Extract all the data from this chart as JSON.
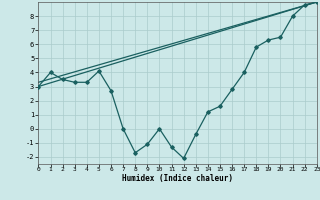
{
  "xlabel": "Humidex (Indice chaleur)",
  "background_color": "#cce8e8",
  "grid_color": "#aacccc",
  "line_color": "#1a6060",
  "x_min": 0,
  "x_max": 23,
  "y_min": -2.5,
  "y_max": 9.0,
  "yticks": [
    -2,
    -1,
    0,
    1,
    2,
    3,
    4,
    5,
    6,
    7,
    8
  ],
  "xticks": [
    0,
    1,
    2,
    3,
    4,
    5,
    6,
    7,
    8,
    9,
    10,
    11,
    12,
    13,
    14,
    15,
    16,
    17,
    18,
    19,
    20,
    21,
    22,
    23
  ],
  "curve_x": [
    0,
    1,
    2,
    3,
    4,
    5,
    6,
    7,
    8,
    9,
    10,
    11,
    12,
    13,
    14,
    15,
    16,
    17,
    18,
    19,
    20,
    21,
    22,
    23
  ],
  "curve_y": [
    3.0,
    4.0,
    3.5,
    3.3,
    3.3,
    4.1,
    2.7,
    0.0,
    -1.7,
    -1.1,
    0.0,
    -1.3,
    -2.1,
    -0.4,
    1.2,
    1.6,
    2.8,
    4.0,
    5.8,
    6.3,
    6.5,
    8.0,
    8.8,
    9.0
  ],
  "line2_x": [
    0,
    23
  ],
  "line2_y": [
    3.0,
    9.0
  ],
  "line3_x": [
    0,
    23
  ],
  "line3_y": [
    3.3,
    9.0
  ]
}
